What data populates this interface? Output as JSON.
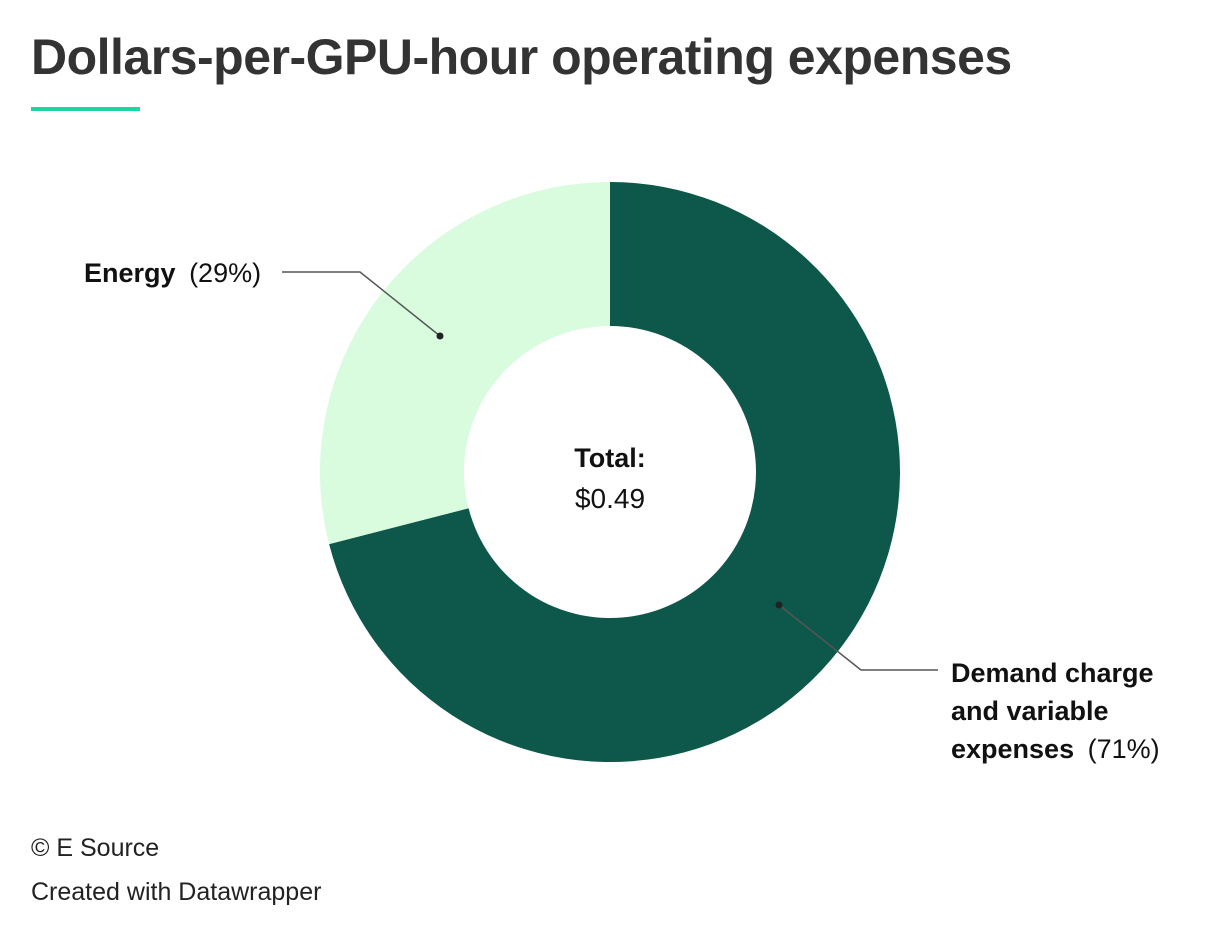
{
  "title": "Dollars-per-GPU-hour operating expenses",
  "accent_color": "#1ad6a0",
  "center_label": {
    "title": "Total:",
    "value": "$0.49"
  },
  "labels": {
    "energy": {
      "name": "Energy",
      "pct": "(29%)"
    },
    "demand": {
      "line1": "Demand charge",
      "line2": "and variable",
      "line3": "expenses",
      "pct": "(71%)"
    }
  },
  "footer": {
    "credit": "© E Source",
    "made_with": "Created with Datawrapper"
  },
  "chart_data": {
    "type": "pie",
    "subtype": "donut",
    "title": "Dollars-per-GPU-hour operating expenses",
    "total": "$0.49",
    "categories": [
      "Demand charge and variable expenses",
      "Energy"
    ],
    "values": [
      71,
      29
    ],
    "unit": "%",
    "colors": [
      "#0d584a",
      "#d9fcdf"
    ],
    "start_angle_deg": 0,
    "direction": "clockwise"
  }
}
